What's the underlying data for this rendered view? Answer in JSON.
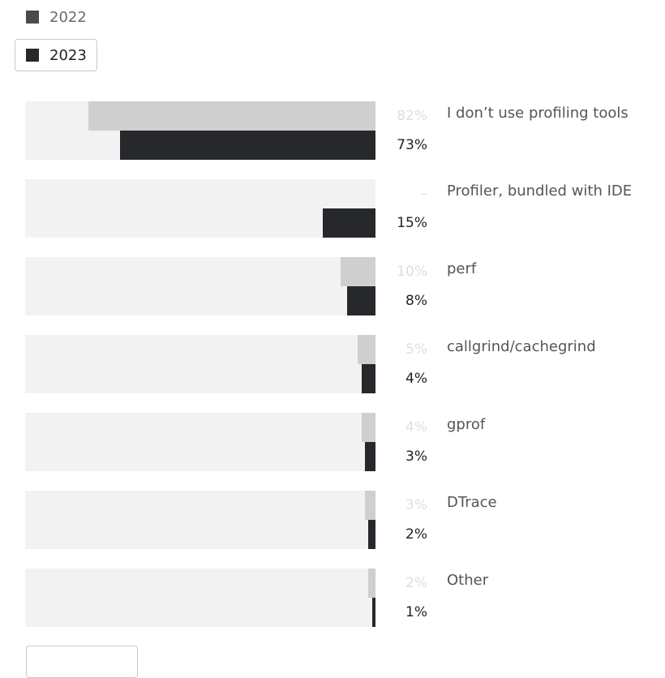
{
  "legend": [
    {
      "label": "2022",
      "color": "#4a4a4d"
    },
    {
      "label": "2023",
      "color": "#27282c"
    }
  ],
  "chart_data": {
    "type": "bar",
    "orientation": "horizontal",
    "unit": "%",
    "series": [
      {
        "name": "2022",
        "color": "#cfcfcf",
        "values": [
          82,
          null,
          10,
          5,
          4,
          3,
          2
        ]
      },
      {
        "name": "2023",
        "color": "#27282c",
        "values": [
          73,
          15,
          8,
          4,
          3,
          2,
          1
        ]
      }
    ],
    "categories": [
      "I don’t use profiling tools",
      "Profiler, bundled with IDE",
      "perf",
      "callgrind/cachegrind",
      "gprof",
      "DTrace",
      "Other"
    ],
    "value_labels_2022": [
      "82%",
      "–",
      "10%",
      "5%",
      "4%",
      "3%",
      "2%"
    ],
    "value_labels_2023": [
      "73%",
      "15%",
      "8%",
      "4%",
      "3%",
      "2%",
      "1%"
    ],
    "xlim": [
      0,
      100
    ]
  }
}
